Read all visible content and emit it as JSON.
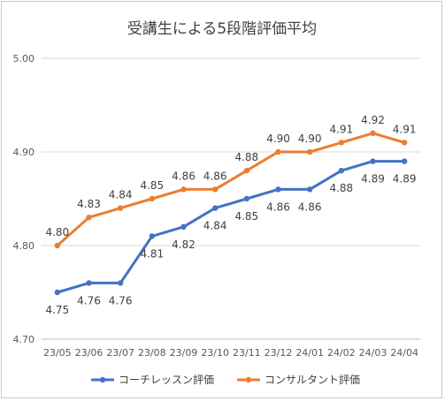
{
  "chart_data": {
    "type": "line",
    "title": "受講生による5段階評価平均",
    "categories": [
      "23/05",
      "23/06",
      "23/07",
      "23/08",
      "23/09",
      "23/10",
      "23/11",
      "23/12",
      "24/01",
      "24/02",
      "24/03",
      "24/04"
    ],
    "ylim": [
      4.7,
      5.0
    ],
    "yticks": [
      "4.70",
      "4.80",
      "4.90",
      "5.00"
    ],
    "grid": true,
    "legend_position": "bottom",
    "series": [
      {
        "name": "コーチレッスン評価",
        "color": "#4472c4",
        "values": [
          4.75,
          4.76,
          4.76,
          4.81,
          4.82,
          4.84,
          4.85,
          4.86,
          4.86,
          4.88,
          4.89,
          4.89
        ],
        "labels": [
          "4.75",
          "4.76",
          "4.76",
          "4.81",
          "4.82",
          "4.84",
          "4.85",
          "4.86",
          "4.86",
          "4.88",
          "4.89",
          "4.89"
        ]
      },
      {
        "name": "コンサルタント評価",
        "color": "#ed7d31",
        "values": [
          4.8,
          4.83,
          4.84,
          4.85,
          4.86,
          4.86,
          4.88,
          4.9,
          4.9,
          4.91,
          4.92,
          4.91
        ],
        "labels": [
          "4.80",
          "4.83",
          "4.84",
          "4.85",
          "4.86",
          "4.86",
          "4.88",
          "4.90",
          "4.90",
          "4.91",
          "4.92",
          "4.91"
        ]
      }
    ]
  }
}
